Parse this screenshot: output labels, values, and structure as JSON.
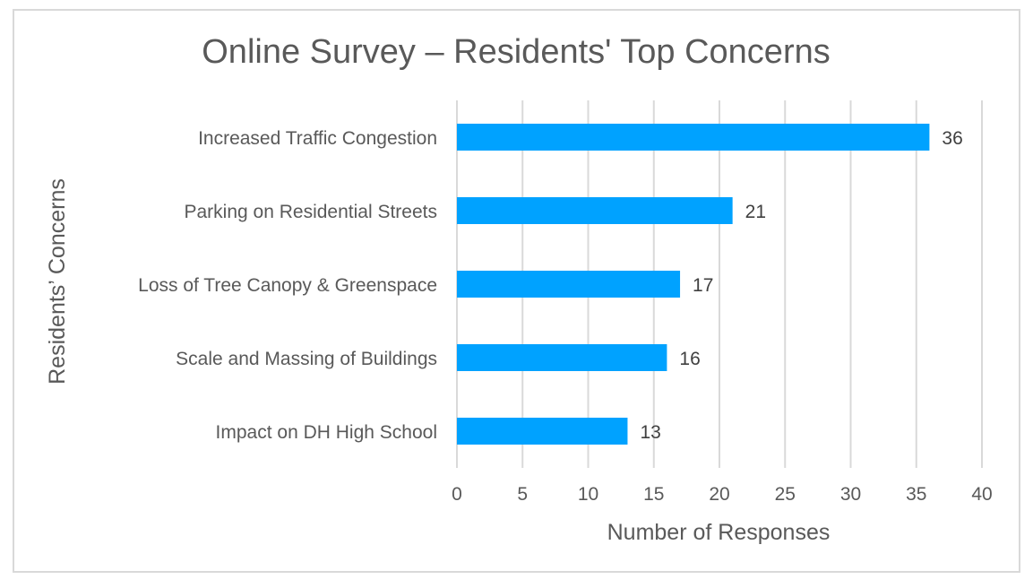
{
  "chart_data": {
    "type": "bar",
    "orientation": "horizontal",
    "title": "Online Survey – Residents' Top Concerns",
    "xlabel": "Number of Responses",
    "ylabel": "Residents’ Concerns",
    "categories": [
      "Increased Traffic Congestion",
      "Parking on Residential Streets",
      "Loss of Tree Canopy & Greenspace",
      "Scale and Massing of Buildings",
      "Impact on DH High School"
    ],
    "values": [
      36,
      21,
      17,
      16,
      13
    ],
    "xlim": [
      0,
      40
    ],
    "xticks": [
      0,
      5,
      10,
      15,
      20,
      25,
      30,
      35,
      40
    ],
    "data_labels": true,
    "grid": "vertical",
    "legend": "none",
    "bar_color": "#00a2ff"
  }
}
